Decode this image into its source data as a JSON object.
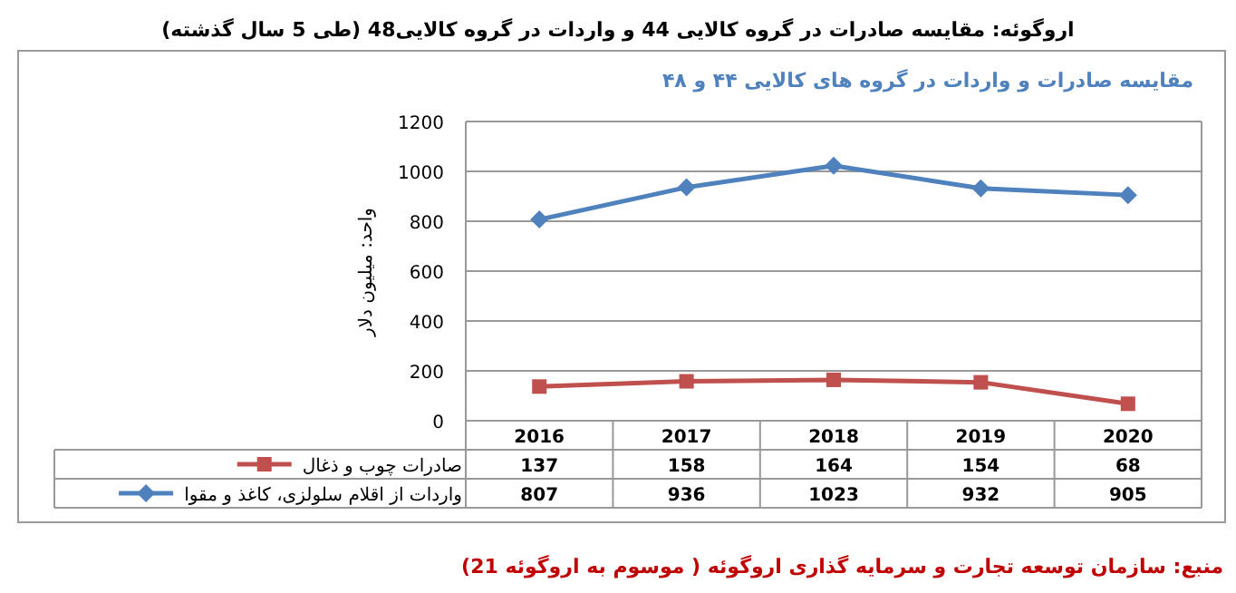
{
  "chart_data": {
    "type": "line",
    "title": "اروگوئه: مقایسه صادرات در گروه کالایی 44 و واردات در گروه کالایی48 (طی 5 سال گذشته)",
    "subtitle": "مقایسه صادرات و واردات در گروه های کالایی ۴۴ و ۴۸",
    "ylabel": "واحد: میلیون دلار",
    "categories": [
      "2016",
      "2017",
      "2018",
      "2019",
      "2020"
    ],
    "series": [
      {
        "name": "صادرات چوب و ذغال",
        "color": "#c0504d",
        "marker": "square",
        "values": [
          137,
          158,
          164,
          154,
          68
        ]
      },
      {
        "name": "واردات از اقلام سلولزی، کاغذ و مقوا",
        "color": "#4f81bd",
        "marker": "diamond",
        "values": [
          807,
          936,
          1023,
          932,
          905
        ]
      }
    ],
    "ylim": [
      0,
      1200
    ],
    "yticks": [
      0,
      200,
      400,
      600,
      800,
      1000,
      1200
    ],
    "grid": "y",
    "legend": "bottom",
    "data_labels": true,
    "line_style": "solid",
    "annotations": [
      "منبع: سازمان توسعه تجارت و سرمایه گذاری اروگوئه ( موسوم به اروگوئه 21)"
    ]
  }
}
